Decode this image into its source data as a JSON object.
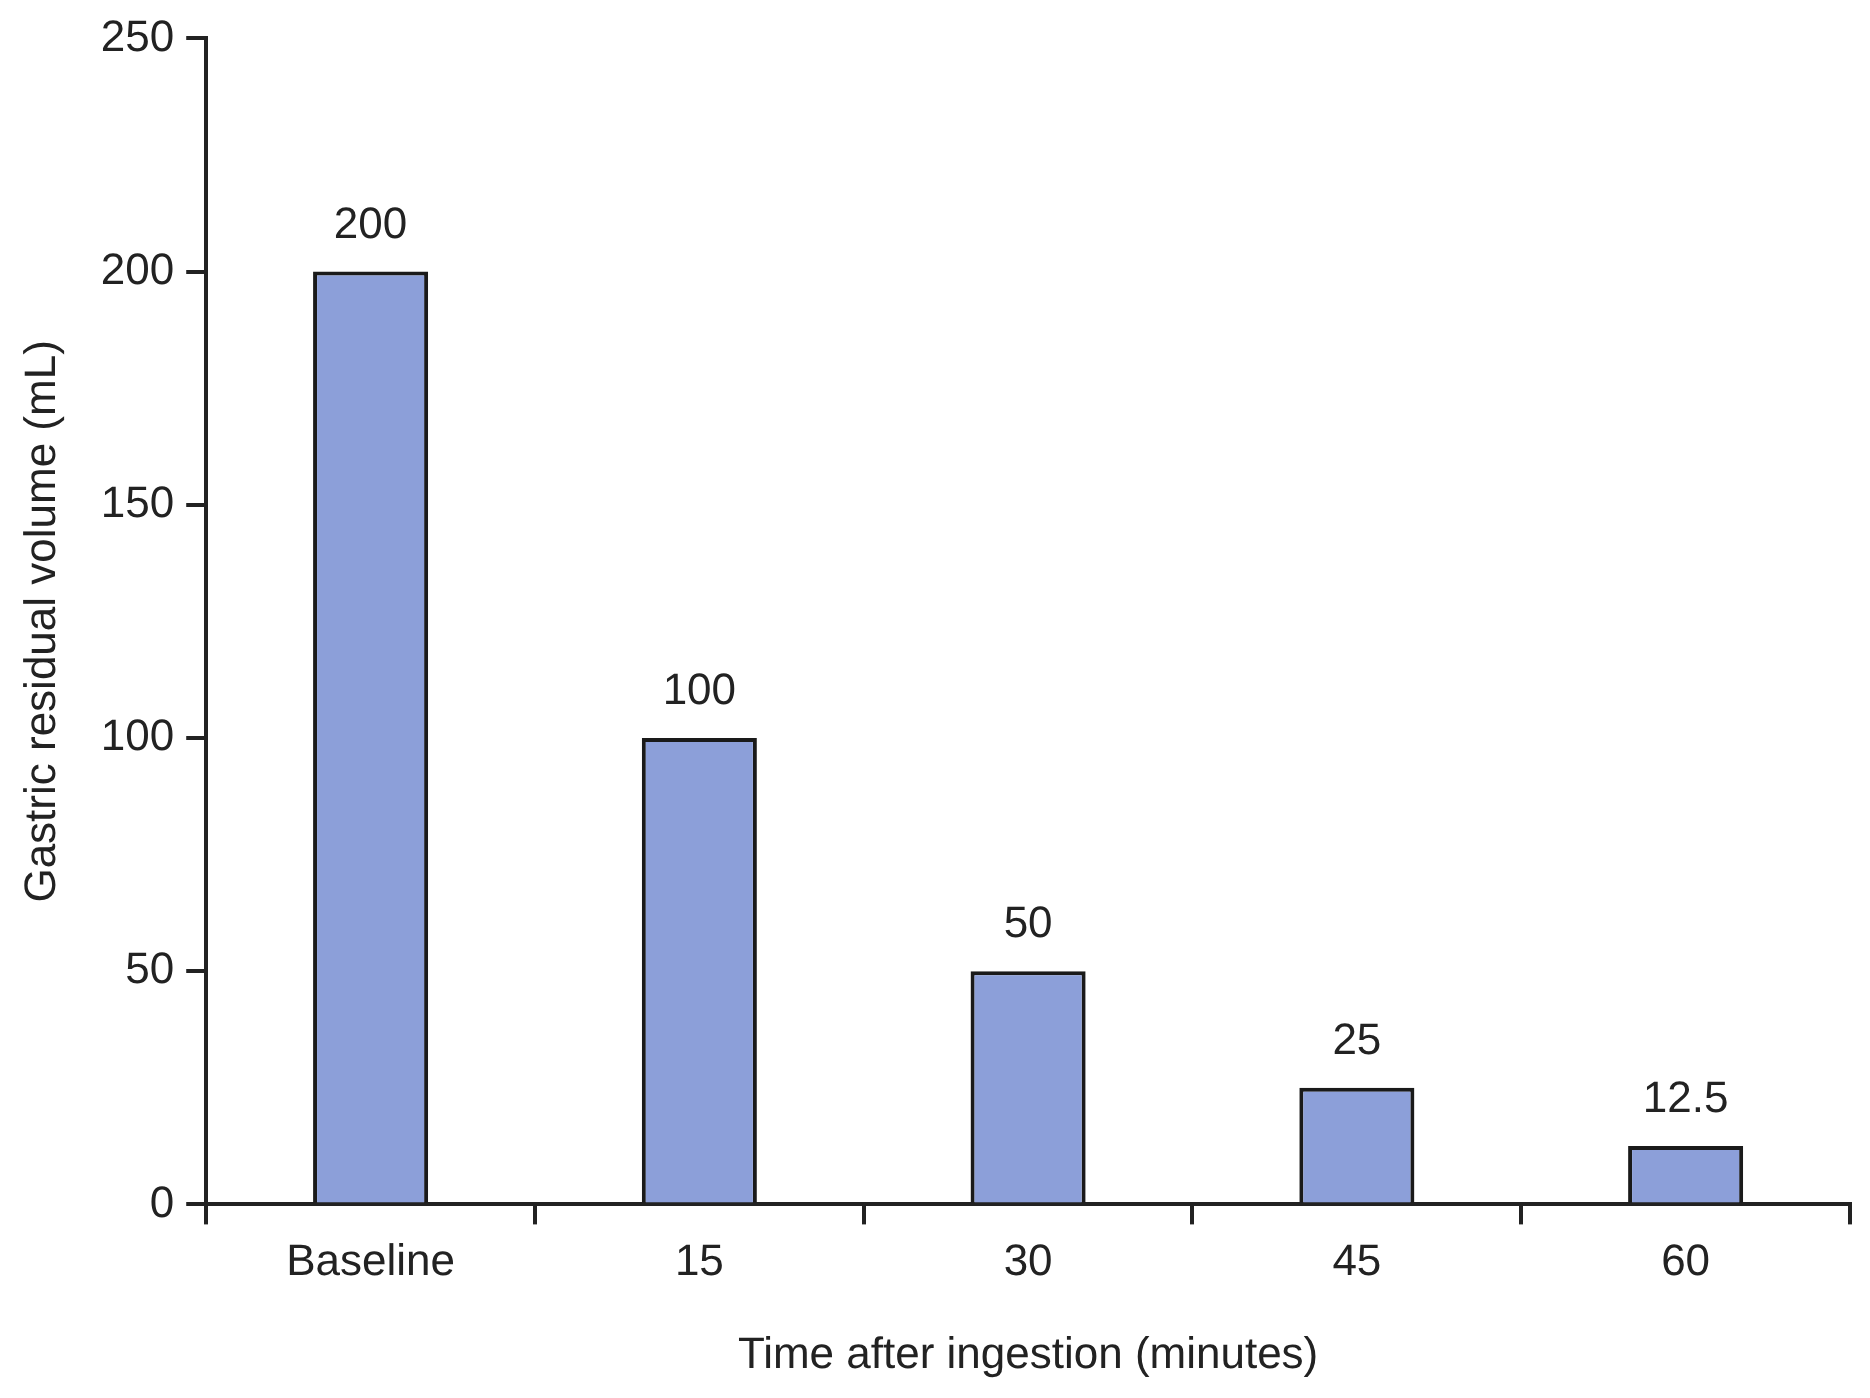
{
  "chart_data": {
    "type": "bar",
    "xlabel": "Time after ingestion (minutes)",
    "ylabel": "Gastric residual volume (mL)",
    "categories": [
      "Baseline",
      "15",
      "30",
      "45",
      "60"
    ],
    "values": [
      200,
      100,
      50,
      25,
      12.5
    ],
    "color": "#8c9fd9",
    "ylim": [
      0,
      250
    ],
    "yticks": [
      0,
      50,
      100,
      150,
      200,
      250
    ],
    "grid": false,
    "legend": false,
    "data_labels": true
  }
}
